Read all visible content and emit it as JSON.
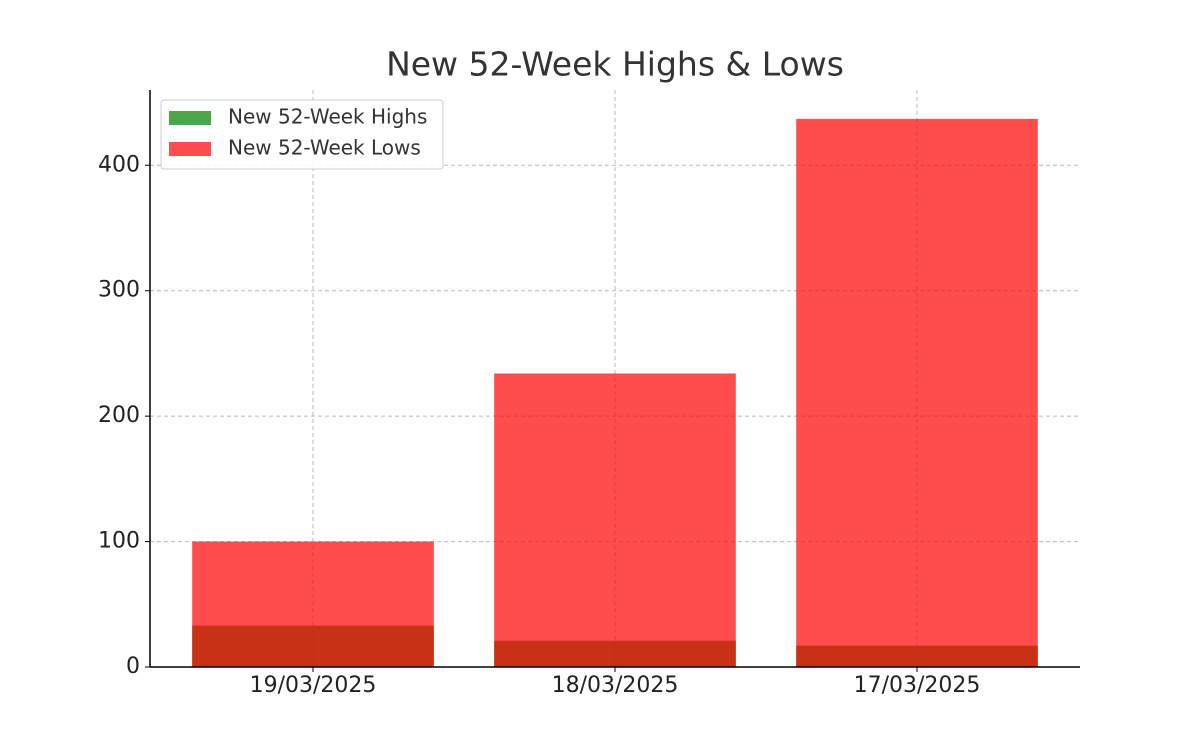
{
  "chart_data": {
    "type": "bar",
    "title": "New 52-Week Highs & Lows",
    "categories": [
      "19/03/2025",
      "18/03/2025",
      "17/03/2025"
    ],
    "series": [
      {
        "name": "New 52-Week Highs",
        "color": "#008000",
        "values": [
          33,
          21,
          17
        ]
      },
      {
        "name": "New 52-Week Lows",
        "color": "#ff0000",
        "values": [
          100,
          234,
          437
        ]
      }
    ],
    "ylim": [
      0,
      460
    ],
    "yticks": [
      0,
      100,
      200,
      300,
      400
    ],
    "grid": true,
    "legend": "upper left"
  }
}
